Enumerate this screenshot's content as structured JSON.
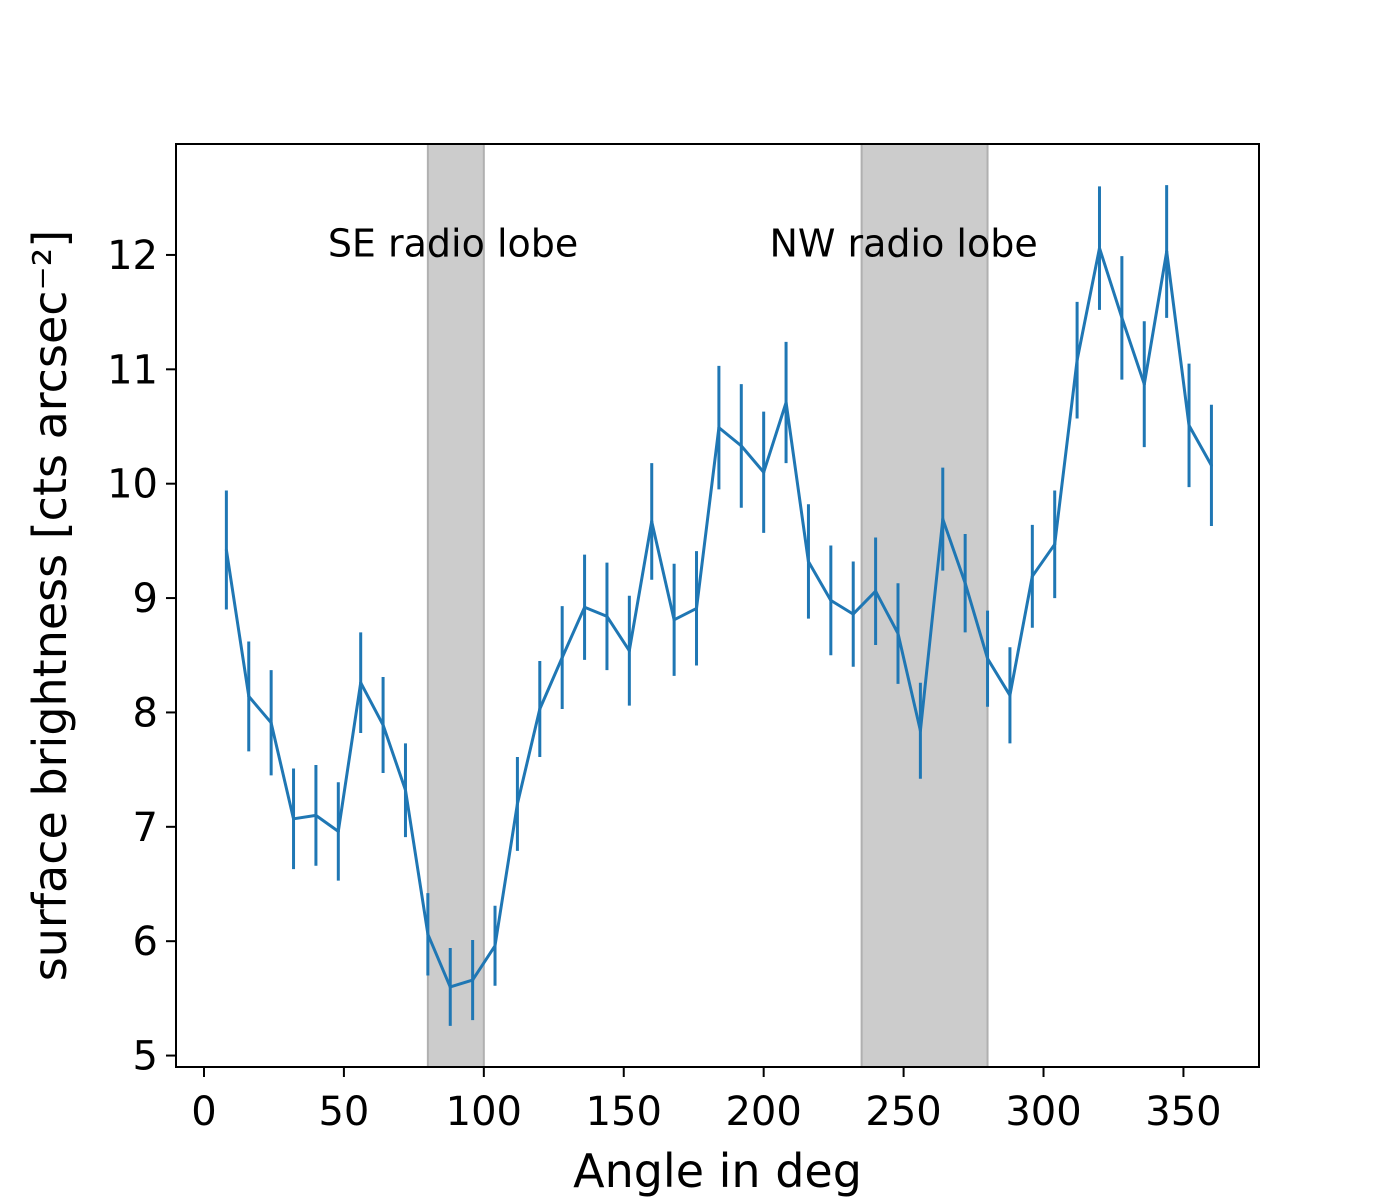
{
  "chart_data": {
    "type": "line",
    "title": "",
    "xlabel": "Angle in deg",
    "ylabel": "surface brightness [cts arcsec⁻²]",
    "xlim": [
      -10,
      377
    ],
    "ylim": [
      4.9,
      12.97
    ],
    "x_ticks": [
      0,
      50,
      100,
      150,
      200,
      250,
      300,
      350
    ],
    "y_ticks": [
      5,
      6,
      7,
      8,
      9,
      10,
      11,
      12
    ],
    "grid": false,
    "line_color": "#1f77b4",
    "shaded_regions": [
      {
        "x0": 80,
        "x1": 100,
        "color": "#cccccc"
      },
      {
        "x0": 235,
        "x1": 280,
        "color": "#cccccc"
      }
    ],
    "annotations": [
      {
        "text": "SE radio lobe",
        "x": 89,
        "y": 12.1
      },
      {
        "text": "NW radio lobe",
        "x": 250,
        "y": 12.1
      }
    ],
    "series": [
      {
        "x": [
          8,
          16,
          24,
          32,
          40,
          48,
          56,
          64,
          72,
          80,
          88,
          96,
          104,
          112,
          120,
          128,
          136,
          144,
          152,
          160,
          168,
          176,
          184,
          192,
          200,
          208,
          216,
          224,
          232,
          240,
          248,
          256,
          264,
          272,
          280,
          288,
          296,
          304,
          312,
          320,
          328,
          336,
          344,
          352,
          360
        ],
        "y": [
          9.42,
          8.14,
          7.91,
          7.07,
          7.1,
          6.96,
          8.26,
          7.89,
          7.32,
          6.06,
          5.6,
          5.66,
          5.96,
          7.2,
          8.03,
          8.48,
          8.92,
          8.84,
          8.54,
          9.67,
          8.81,
          8.91,
          10.49,
          10.33,
          10.1,
          10.71,
          9.32,
          8.98,
          8.86,
          9.06,
          8.69,
          7.84,
          9.69,
          9.13,
          8.47,
          8.15,
          9.19,
          9.47,
          11.08,
          12.06,
          11.45,
          10.87,
          12.03,
          10.51,
          10.16
        ],
        "err": [
          0.52,
          0.48,
          0.46,
          0.44,
          0.44,
          0.43,
          0.44,
          0.42,
          0.41,
          0.36,
          0.34,
          0.35,
          0.35,
          0.41,
          0.42,
          0.45,
          0.46,
          0.47,
          0.48,
          0.51,
          0.49,
          0.5,
          0.54,
          0.54,
          0.53,
          0.53,
          0.5,
          0.48,
          0.46,
          0.47,
          0.44,
          0.42,
          0.45,
          0.43,
          0.42,
          0.42,
          0.45,
          0.47,
          0.51,
          0.54,
          0.54,
          0.55,
          0.58,
          0.54,
          0.53
        ]
      }
    ]
  }
}
